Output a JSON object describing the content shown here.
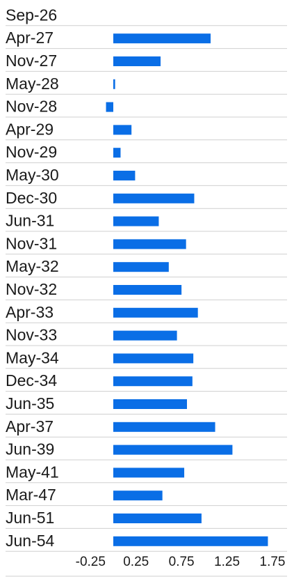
{
  "chart_data": {
    "type": "bar",
    "orientation": "horizontal",
    "title": "",
    "xlabel": "",
    "ylabel": "",
    "color": "#0a6ee6",
    "grid": "horizontal row separators",
    "xlim": [
      -0.25,
      1.75
    ],
    "xticks": [
      "-0.25",
      "0.25",
      "0.75",
      "1.25",
      "1.75"
    ],
    "xtick_values": [
      -0.25,
      0.25,
      0.75,
      1.25,
      1.75
    ],
    "categories": [
      "Sep-26",
      "Apr-27",
      "Nov-27",
      "May-28",
      "Nov-28",
      "Apr-29",
      "Nov-29",
      "May-30",
      "Dec-30",
      "Jun-31",
      "Nov-31",
      "May-32",
      "Nov-32",
      "Apr-33",
      "Nov-33",
      "May-34",
      "Dec-34",
      "Jun-35",
      "Apr-37",
      "Jun-39",
      "May-41",
      "Mar-47",
      "Jun-51",
      "Jun-54"
    ],
    "values": [
      0,
      1.07,
      0.52,
      0.02,
      -0.08,
      0.2,
      0.08,
      0.24,
      0.89,
      0.5,
      0.8,
      0.61,
      0.75,
      0.93,
      0.7,
      0.88,
      0.87,
      0.81,
      1.12,
      1.31,
      0.78,
      0.54,
      0.97,
      1.7
    ]
  }
}
